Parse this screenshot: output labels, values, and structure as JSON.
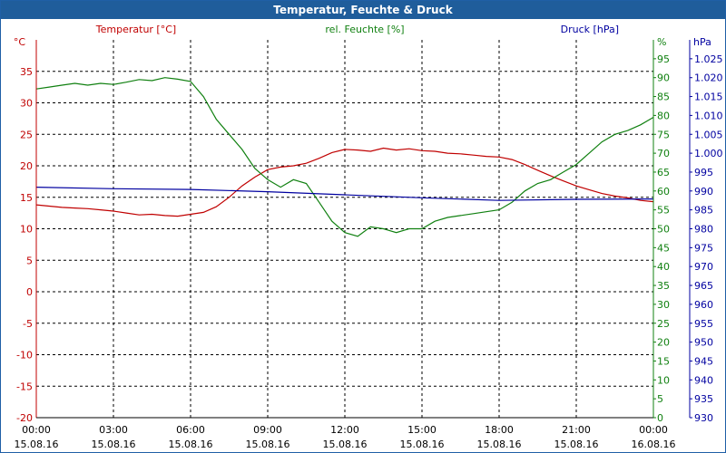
{
  "window": {
    "title": "Temperatur, Feuchte & Druck"
  },
  "colors": {
    "temp": "#c00000",
    "hum": "#108010",
    "press": "#0000a0",
    "title_bg": "#1f5d9b"
  },
  "chart_data": {
    "type": "line",
    "title": "Temperatur, Feuchte & Druck",
    "x_ticks": [
      {
        "time": "00:00",
        "date": "15.08.16"
      },
      {
        "time": "03:00",
        "date": "15.08.16"
      },
      {
        "time": "06:00",
        "date": "15.08.16"
      },
      {
        "time": "09:00",
        "date": "15.08.16"
      },
      {
        "time": "12:00",
        "date": "15.08.16"
      },
      {
        "time": "15:00",
        "date": "15.08.16"
      },
      {
        "time": "18:00",
        "date": "15.08.16"
      },
      {
        "time": "21:00",
        "date": "15.08.16"
      },
      {
        "time": "00:00",
        "date": "16.08.16"
      }
    ],
    "xlim_hours": [
      0,
      24
    ],
    "axes": {
      "temp": {
        "label": "Temperatur [°C]",
        "unit": "°C",
        "ylim": [
          -20,
          40
        ],
        "ticks": [
          "-20",
          "-15",
          "-10",
          "-5",
          "0",
          "5",
          "10",
          "15",
          "20",
          "25",
          "30",
          "35"
        ]
      },
      "hum": {
        "label": "rel. Feuchte [%]",
        "unit": "%",
        "ylim": [
          0,
          100
        ],
        "ticks": [
          "0",
          "5",
          "10",
          "15",
          "20",
          "25",
          "30",
          "35",
          "40",
          "45",
          "50",
          "55",
          "60",
          "65",
          "70",
          "75",
          "80",
          "85",
          "90",
          "95"
        ]
      },
      "press": {
        "label": "Druck [hPa]",
        "unit": "hPa",
        "ylim": [
          930,
          1030
        ],
        "ticks": [
          "930",
          "935",
          "940",
          "945",
          "950",
          "955",
          "960",
          "965",
          "970",
          "975",
          "980",
          "985",
          "990",
          "995",
          "1.000",
          "1.005",
          "1.010",
          "1.015",
          "1.020",
          "1.025"
        ]
      }
    },
    "series": [
      {
        "name": "Temperatur",
        "axis": "temp",
        "x": [
          0,
          0.5,
          1,
          1.5,
          2,
          2.5,
          3,
          3.5,
          4,
          4.5,
          5,
          5.5,
          6,
          6.5,
          7,
          7.5,
          8,
          8.5,
          9,
          9.5,
          10,
          10.5,
          11,
          11.5,
          12,
          12.5,
          13,
          13.5,
          14,
          14.5,
          15,
          15.5,
          16,
          16.5,
          17,
          17.5,
          18,
          18.5,
          19,
          19.5,
          20,
          20.5,
          21,
          21.5,
          22,
          22.5,
          23,
          23.5,
          24
        ],
        "values": [
          13.8,
          13.6,
          13.4,
          13.3,
          13.2,
          13.0,
          12.8,
          12.5,
          12.2,
          12.3,
          12.1,
          12.0,
          12.3,
          12.6,
          13.5,
          15.0,
          16.8,
          18.2,
          19.4,
          19.8,
          20.0,
          20.4,
          21.2,
          22.1,
          22.6,
          22.5,
          22.3,
          22.8,
          22.5,
          22.7,
          22.4,
          22.3,
          22.0,
          21.9,
          21.7,
          21.5,
          21.4,
          21.0,
          20.2,
          19.3,
          18.4,
          17.6,
          16.8,
          16.2,
          15.6,
          15.2,
          14.9,
          14.5,
          14.3
        ]
      },
      {
        "name": "rel. Feuchte",
        "axis": "hum",
        "x": [
          0,
          0.5,
          1,
          1.5,
          2,
          2.5,
          3,
          3.5,
          4,
          4.5,
          5,
          5.5,
          6,
          6.5,
          7,
          7.5,
          8,
          8.5,
          9,
          9.5,
          10,
          10.5,
          11,
          11.5,
          12,
          12.5,
          13,
          13.5,
          14,
          14.5,
          15,
          15.5,
          16,
          16.5,
          17,
          17.5,
          18,
          18.5,
          19,
          19.5,
          20,
          20.5,
          21,
          21.5,
          22,
          22.5,
          23,
          23.5,
          24
        ],
        "values": [
          87,
          87.5,
          88,
          88.5,
          88,
          88.5,
          88.2,
          88.8,
          89.5,
          89.2,
          90,
          89.6,
          89,
          85,
          79,
          75,
          71,
          66,
          63,
          61,
          63,
          62,
          57,
          52,
          49,
          48,
          50.5,
          50,
          49,
          50,
          50,
          52,
          53,
          53.5,
          54,
          54.5,
          55,
          57,
          60,
          62,
          63,
          65,
          67,
          70,
          73,
          75,
          76,
          77.5,
          79.5
        ]
      },
      {
        "name": "Druck",
        "axis": "press",
        "x": [
          0,
          3,
          6,
          9,
          12,
          15,
          18,
          21,
          24
        ],
        "values": [
          991,
          990.6,
          990.4,
          989.8,
          989,
          988.2,
          987.5,
          987.8,
          987.9
        ]
      }
    ]
  }
}
